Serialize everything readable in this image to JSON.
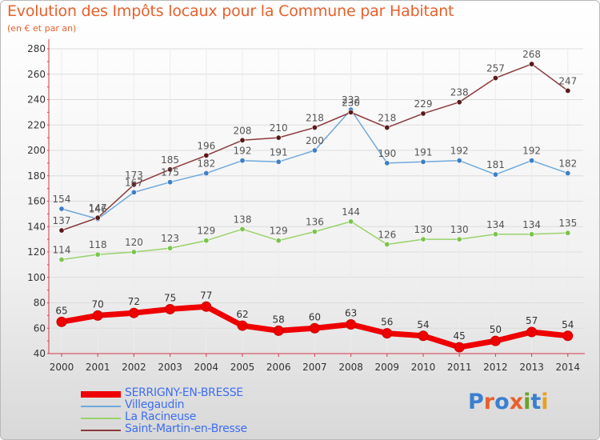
{
  "title": "Evolution des Impôts locaux pour la Commune par Habitant",
  "subtitle": "(en € et par an)",
  "logo_text": "Proxiti",
  "colors": {
    "title": "#e8602c",
    "legend_text": "#3d6ef0",
    "axis_line": "#d23a4a",
    "grid": "#dcdcdc",
    "logo": [
      "#3a7fd0",
      "#e8602c",
      "#3a7fd0",
      "#e8602c",
      "#6aa22a",
      "#3a7fd0",
      "#e8a020"
    ]
  },
  "chart_data": {
    "type": "line",
    "categories": [
      "2000",
      "2001",
      "2002",
      "2003",
      "2004",
      "2005",
      "2006",
      "2007",
      "2008",
      "2009",
      "2010",
      "2011",
      "2012",
      "2013",
      "2014"
    ],
    "ylim": [
      40,
      280
    ],
    "yticks": [
      40,
      60,
      80,
      100,
      120,
      140,
      160,
      180,
      200,
      220,
      240,
      260,
      280
    ],
    "grid": true,
    "legend_position": "bottom-left",
    "series": [
      {
        "name": "SERRIGNY-EN-BRESSE",
        "color": "#ee0000",
        "point_color": "#ee0000",
        "label_color": "#333333",
        "values": [
          65,
          70,
          72,
          75,
          77,
          62,
          58,
          60,
          63,
          56,
          54,
          45,
          50,
          57,
          54
        ]
      },
      {
        "name": "Villegaudin",
        "color": "#6fa8dc",
        "point_color": "#3f7fc4",
        "label_color": "#555555",
        "values": [
          154,
          146,
          167,
          175,
          182,
          192,
          191,
          200,
          232,
          190,
          191,
          192,
          181,
          192,
          182
        ],
        "labels": [
          "154",
          "146",
          "167",
          "175",
          "182",
          "192",
          "191",
          "200",
          "232",
          "190",
          "191",
          "192",
          "181",
          "192",
          "182"
        ]
      },
      {
        "name": "La Racineuse",
        "color": "#98d36a",
        "point_color": "#7cc34e",
        "label_color": "#555555",
        "values": [
          114,
          118,
          120,
          123,
          129,
          138,
          129,
          136,
          144,
          126,
          130,
          130,
          134,
          134,
          135
        ]
      },
      {
        "name": "Saint-Martin-en-Bresse",
        "color": "#8b3a3a",
        "point_color": "#5a1a1a",
        "label_color": "#555555",
        "values": [
          137,
          147,
          173,
          185,
          196,
          208,
          210,
          218,
          230,
          218,
          229,
          238,
          257,
          268,
          247
        ]
      }
    ]
  }
}
